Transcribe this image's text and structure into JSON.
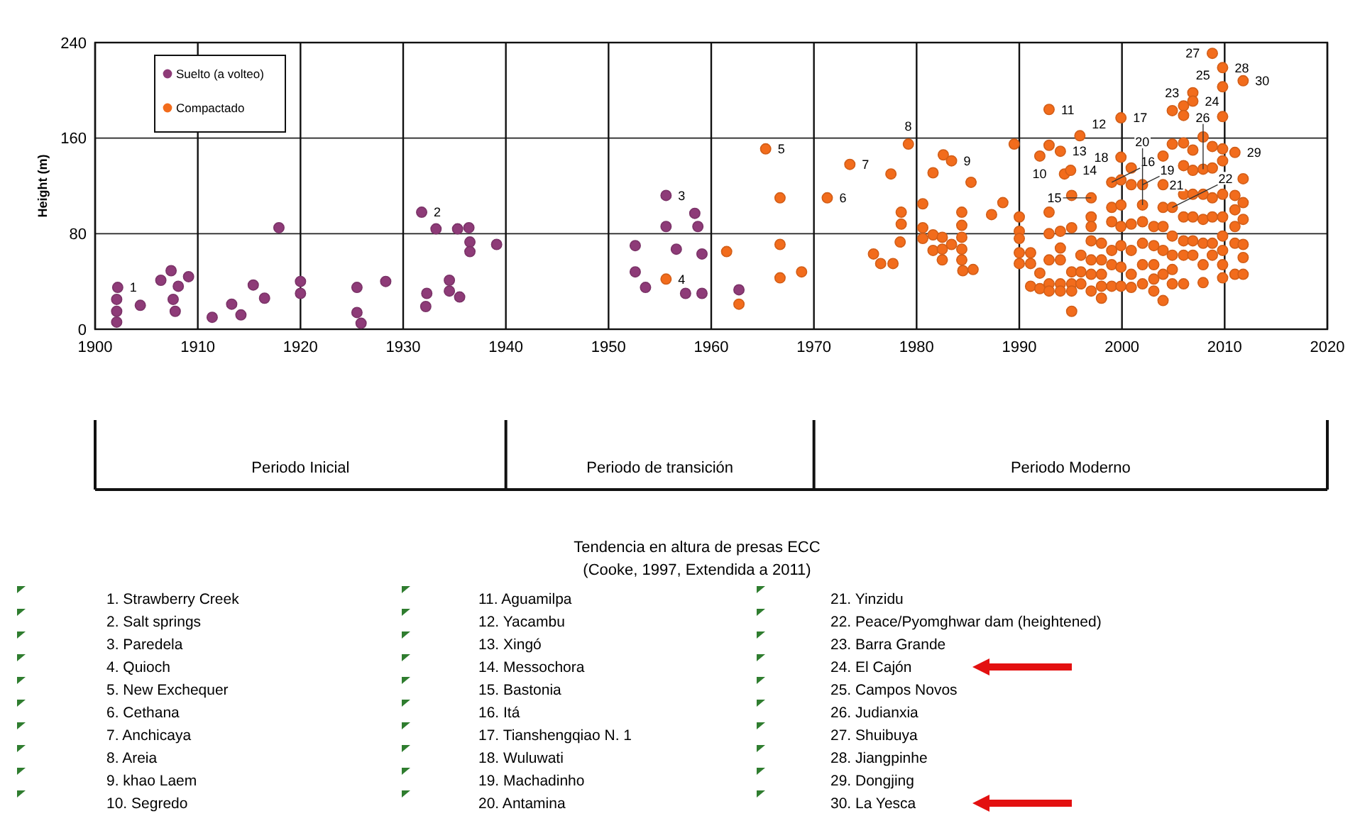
{
  "chart_data": {
    "type": "scatter",
    "title": "Tendencia en altura de presas ECC",
    "subtitle": "(Cooke, 1997, Extendida a 2011)",
    "ylabel": "Height (m)",
    "xlim": [
      1900,
      2020
    ],
    "xticks": [
      1900,
      1910,
      1920,
      1930,
      1940,
      1950,
      1960,
      1970,
      1980,
      1990,
      2000,
      2010,
      2020
    ],
    "ylim": [
      0,
      240
    ],
    "yticks": [
      0,
      80,
      160,
      240
    ],
    "grid": true,
    "legend": "top left",
    "marker": "circle",
    "series": [
      {
        "name": "Suelto (a volteo)",
        "color": "#8e3b78",
        "x": [
          1902.1,
          1902.1,
          1902.1,
          1902.2,
          1904.4,
          1906.4,
          1907.4,
          1907.6,
          1907.8,
          1908.1,
          1909.1,
          1911.4,
          1913.3,
          1914.2,
          1915.4,
          1916.5,
          1917.9,
          1920,
          1920,
          1925.5,
          1925.5,
          1925.9,
          1928.3,
          1931.8,
          1932.3,
          1932.2,
          1933.2,
          1934.5,
          1934.5,
          1935.5,
          1935.3,
          1936.4,
          1936.5,
          1936.5,
          1939.1,
          1952.6,
          1952.6,
          1953.6,
          1955.6,
          1955.6,
          1956.6,
          1958.4,
          1958.7,
          1959.1,
          1957.5,
          1959.1,
          1962.7
        ],
        "values": [
          6,
          15,
          25,
          35,
          20,
          41,
          49,
          25,
          15,
          36,
          44,
          10,
          21,
          12,
          37,
          26,
          85,
          40,
          30,
          35,
          14,
          5,
          40,
          98,
          30,
          19,
          84,
          41,
          32,
          27,
          84,
          85,
          73,
          65,
          71,
          70,
          48,
          35,
          112,
          86,
          67,
          97,
          86,
          63,
          30,
          30,
          33
        ]
      },
      {
        "name": "Compactado",
        "color": "#f26c1c",
        "x": [
          1955.6,
          1961.5,
          1962.7,
          1965.3,
          1966.7,
          1966.7,
          1966.7,
          1968.8,
          1971.3,
          1973.5,
          1975.8,
          1976.5,
          1977.5,
          1977.7,
          1978.5,
          1978.5,
          1978.4,
          1979.2,
          1980.6,
          1980.6,
          1980.6,
          1981.6,
          1981.6,
          1981.6,
          1982.6,
          1982.5,
          1982.5,
          1982.5,
          1983.4,
          1983.4,
          1984.4,
          1984.4,
          1984.4,
          1984.4,
          1984.4,
          1984.5,
          1985.3,
          1985.5,
          1987.3,
          1988.4,
          1989.5,
          1990,
          1990,
          1990,
          1990,
          1990,
          1991.1,
          1991.1,
          1991.1,
          1992,
          1992,
          1992,
          1992.9,
          1992.9,
          1992.9,
          1992.9,
          1992.9,
          1992.9,
          1992.9,
          1994,
          1994,
          1994,
          1994,
          1994,
          1994,
          1994.4,
          1995,
          1995.1,
          1995.1,
          1995.1,
          1995.1,
          1995.1,
          1995.1,
          1995.9,
          1996,
          1996,
          1996,
          1997,
          1997,
          1997,
          1997,
          1997,
          1997,
          1997,
          1998,
          1998,
          1998,
          1998,
          1998,
          1999,
          1999,
          1999,
          1999,
          1999,
          1999,
          1999.9,
          1999.9,
          1999.9,
          1999.9,
          1999.9,
          1999.9,
          1999.9,
          1999.9,
          2000.9,
          2000.9,
          2000.9,
          2000.9,
          2000.9,
          2000.9,
          2002,
          2002,
          2002,
          2002,
          2002,
          2002,
          2003.1,
          2003.1,
          2003.1,
          2003.1,
          2003.1,
          2004,
          2004,
          2004,
          2004,
          2004,
          2004,
          2004,
          2004.9,
          2004.9,
          2004.9,
          2004.9,
          2004.9,
          2004.9,
          2004.9,
          2006,
          2006,
          2006,
          2006,
          2006,
          2006,
          2006,
          2006,
          2006,
          2006.9,
          2006.9,
          2006.9,
          2006.9,
          2006.9,
          2006.9,
          2006.9,
          2006.9,
          2007.9,
          2007.9,
          2007.9,
          2007.9,
          2007.9,
          2007.9,
          2007.9,
          2008.8,
          2008.8,
          2008.8,
          2008.8,
          2008.8,
          2008.8,
          2008.8,
          2009.8,
          2009.8,
          2009.8,
          2009.8,
          2009.8,
          2009.8,
          2009.8,
          2009.8,
          2009.8,
          2009.8,
          2009.8,
          2011,
          2011,
          2011,
          2011,
          2011,
          2011,
          2011.8,
          2011.8,
          2011.8,
          2011.8,
          2011.8,
          2011.8,
          2011.8
        ],
        "values": [
          42,
          65,
          21,
          151,
          110,
          71,
          43,
          48,
          110,
          138,
          63,
          55,
          130,
          55,
          98,
          88,
          73,
          155,
          105,
          85,
          76,
          131,
          79,
          66,
          146,
          77,
          67,
          58,
          141,
          71,
          98,
          87,
          77,
          67,
          58,
          49,
          123,
          50,
          96,
          106,
          155,
          94,
          82,
          76,
          64,
          55,
          64,
          55,
          36,
          145,
          47,
          34,
          184,
          154,
          98,
          80,
          58,
          38,
          32,
          149,
          82,
          68,
          58,
          38,
          32,
          130,
          133,
          112,
          85,
          48,
          38,
          32,
          15,
          162,
          62,
          48,
          38,
          110,
          94,
          86,
          74,
          58,
          46,
          32,
          72,
          58,
          46,
          36,
          26,
          123,
          102,
          90,
          66,
          54,
          36,
          177,
          144,
          125,
          104,
          86,
          70,
          52,
          36,
          135,
          121,
          88,
          66,
          46,
          35,
          121,
          104,
          90,
          72,
          54,
          38,
          86,
          70,
          54,
          42,
          32,
          145,
          121,
          102,
          86,
          66,
          46,
          24,
          183,
          155,
          102,
          78,
          62,
          50,
          38,
          187,
          179,
          156,
          137,
          113,
          94,
          74,
          62,
          38,
          198,
          191,
          150,
          133,
          113,
          94,
          74,
          62,
          161,
          134,
          113,
          92,
          72,
          54,
          39,
          231,
          153,
          135,
          110,
          94,
          72,
          62,
          219,
          203,
          178,
          151,
          141,
          113,
          94,
          78,
          66,
          54,
          43,
          148,
          112,
          100,
          86,
          72,
          46,
          208,
          126,
          106,
          92,
          71,
          60,
          46
        ]
      }
    ],
    "annotations": [
      {
        "text": "1",
        "x": 1902.2,
        "y": 35
      },
      {
        "text": "2",
        "x": 1931.8,
        "y": 98
      },
      {
        "text": "3",
        "x": 1955.6,
        "y": 112
      },
      {
        "text": "4",
        "x": 1955.6,
        "y": 42
      },
      {
        "text": "5",
        "x": 1965.3,
        "y": 151
      },
      {
        "text": "6",
        "x": 1971.3,
        "y": 110
      },
      {
        "text": "7",
        "x": 1973.5,
        "y": 138
      },
      {
        "text": "8",
        "x": 1979.2,
        "y": 155
      },
      {
        "text": "9",
        "x": 1983.4,
        "y": 141
      },
      {
        "text": "10",
        "x": 1992,
        "y": 145
      },
      {
        "text": "11",
        "x": 1992.9,
        "y": 184
      },
      {
        "text": "12",
        "x": 1995.9,
        "y": 162
      },
      {
        "text": "13",
        "x": 1994,
        "y": 149
      },
      {
        "text": "14",
        "x": 1995,
        "y": 133
      },
      {
        "text": "15",
        "x": 1997,
        "y": 110
      },
      {
        "text": "16",
        "x": 1999,
        "y": 123
      },
      {
        "text": "17",
        "x": 1999.9,
        "y": 177
      },
      {
        "text": "18",
        "x": 1999.9,
        "y": 144
      },
      {
        "text": "19",
        "x": 2002,
        "y": 121
      },
      {
        "text": "20",
        "x": 2002,
        "y": 104
      },
      {
        "text": "21",
        "x": 2004,
        "y": 121
      },
      {
        "text": "22",
        "x": 2004.9,
        "y": 102
      },
      {
        "text": "23",
        "x": 2004.9,
        "y": 183
      },
      {
        "text": "24",
        "x": 2006.9,
        "y": 191
      },
      {
        "text": "25",
        "x": 2009.8,
        "y": 203
      },
      {
        "text": "26",
        "x": 2007.9,
        "y": 134
      },
      {
        "text": "27",
        "x": 2008.8,
        "y": 231
      },
      {
        "text": "28",
        "x": 2009.8,
        "y": 219
      },
      {
        "text": "29",
        "x": 2011,
        "y": 148
      },
      {
        "text": "30",
        "x": 2011.8,
        "y": 208
      },
      "Periodo Inicial",
      "Periodo de transición",
      "Periodo Moderno",
      "1. Strawberry Creek",
      "2. Salt springs",
      "3. Paredela",
      "4. Quioch",
      "5. New Exchequer",
      "6. Cethana",
      "7. Anchicaya",
      "8. Areia",
      "9. khao Laem",
      "10. Segredo",
      "11. Aguamilpa",
      "12. Yacambu",
      "13. Xingó",
      "14. Messochora",
      "15. Bastonia",
      "16. Itá",
      "17. Tianshengqiao N. 1",
      "18. Wuluwati",
      "19. Machadinho",
      "20. Antamina",
      "21. Yinzidu",
      "22. Peace/Pyomghwar dam (heightened)",
      "23. Barra Grande",
      "24. El Cajón",
      "25. Campos Novos",
      "26. Judianxia",
      "27. Shuibuya",
      "28. Jiangpinhe",
      "29. Dongjing",
      "30. La Yesca"
    ]
  }
}
